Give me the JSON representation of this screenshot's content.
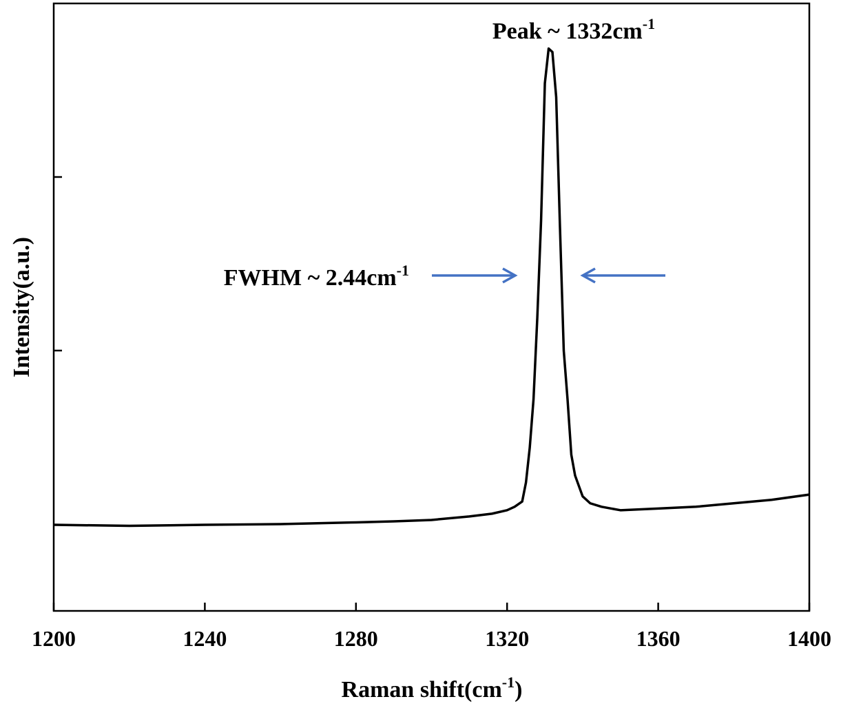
{
  "chart_data": {
    "type": "line",
    "xlabel": {
      "text": "Raman shift(cm",
      "sup": "-1",
      "tail": ")"
    },
    "ylabel": "Intensity(a.u.)",
    "annotations": [
      {
        "text": "Peak ~ 1332cm",
        "sup": "-1"
      },
      {
        "text": "FWHM ~ 2.44cm",
        "sup": "-1"
      }
    ],
    "x": [
      1200,
      1220,
      1240,
      1260,
      1280,
      1290,
      1300,
      1310,
      1316,
      1320,
      1322,
      1324,
      1325,
      1326,
      1327,
      1328,
      1329,
      1330,
      1331,
      1332,
      1333,
      1334,
      1335,
      1336,
      1337,
      1338,
      1340,
      1342,
      1345,
      1350,
      1360,
      1370,
      1380,
      1390,
      1400
    ],
    "values": [
      0.496,
      0.49,
      0.496,
      0.5,
      0.51,
      0.516,
      0.524,
      0.544,
      0.56,
      0.58,
      0.6,
      0.63,
      0.74,
      0.94,
      1.22,
      1.69,
      2.25,
      3.04,
      3.24,
      3.22,
      2.96,
      2.21,
      1.5,
      1.22,
      0.9,
      0.78,
      0.66,
      0.62,
      0.6,
      0.58,
      0.59,
      0.6,
      0.62,
      0.64,
      0.67
    ],
    "color": "#000000",
    "xlim": [
      1200,
      1400
    ],
    "xticks": [
      1200,
      1240,
      1280,
      1320,
      1360,
      1400
    ],
    "ylim": [
      0,
      3.5
    ],
    "yticks": [
      1.5,
      2.5
    ]
  }
}
